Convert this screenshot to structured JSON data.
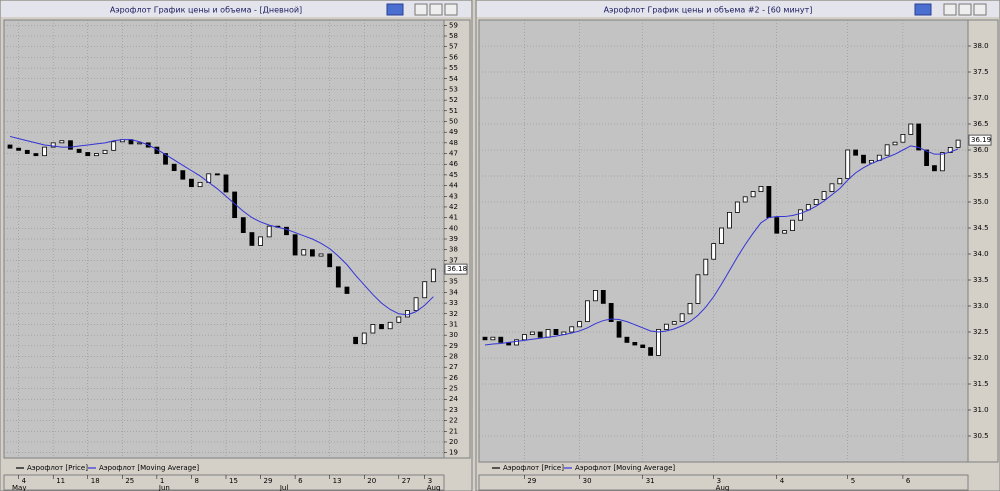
{
  "chart_data": [
    {
      "type": "candlestick",
      "title": "Аэрофлот График цены и объема - [Дневной]",
      "ylim": [
        18.5,
        59.5
      ],
      "yticks": [
        19,
        20,
        21,
        22,
        23,
        24,
        25,
        26,
        27,
        28,
        29,
        30,
        31,
        32,
        33,
        34,
        35,
        36,
        37,
        38,
        39,
        40,
        41,
        42,
        43,
        44,
        45,
        46,
        47,
        48,
        49,
        50,
        51,
        52,
        53,
        54,
        55,
        56,
        57,
        58,
        59
      ],
      "xticks": [
        {
          "value": 1,
          "label": "4"
        },
        {
          "value": 5,
          "label": "11"
        },
        {
          "value": 9,
          "label": "18"
        },
        {
          "value": 13,
          "label": "25"
        },
        {
          "value": 17,
          "label": "1"
        },
        {
          "value": 21,
          "label": "8"
        },
        {
          "value": 25,
          "label": "15"
        },
        {
          "value": 29,
          "label": "29"
        },
        {
          "value": 33,
          "label": "6"
        },
        {
          "value": 37,
          "label": "13"
        },
        {
          "value": 41,
          "label": "20"
        },
        {
          "value": 45,
          "label": "27"
        },
        {
          "value": 48,
          "label": "3"
        }
      ],
      "months": [
        {
          "value": 0,
          "label": "May"
        },
        {
          "value": 17,
          "label": "Jun"
        },
        {
          "value": 31,
          "label": "Jul"
        },
        {
          "value": 48,
          "label": "Aug"
        }
      ],
      "grid": true,
      "series": [
        {
          "name": "Аэрофлот [Price]",
          "color": "#000000",
          "open": [
            47.8,
            47.5,
            47.3,
            47.0,
            46.8,
            47.6,
            48.0,
            48.2,
            47.4,
            47.1,
            46.8,
            47.0,
            47.3,
            48.1,
            48.3,
            47.9,
            48.0,
            47.6,
            47.0,
            46.0,
            45.4,
            44.6,
            43.9,
            44.3,
            45.1,
            45.0,
            43.4,
            41.0,
            39.6,
            38.4,
            39.2,
            40.2,
            40.1,
            39.4,
            37.5,
            38.0,
            37.4,
            37.6,
            36.4,
            34.5,
            29.8,
            29.2,
            30.2,
            31.0,
            30.6,
            31.2,
            31.7,
            32.3,
            33.5,
            35.0
          ],
          "close": [
            47.5,
            47.3,
            47.0,
            46.8,
            47.6,
            48.0,
            48.2,
            47.4,
            47.1,
            46.8,
            47.0,
            47.3,
            48.1,
            48.3,
            47.9,
            48.0,
            47.6,
            47.0,
            46.0,
            45.4,
            44.6,
            43.9,
            44.3,
            45.1,
            45.0,
            43.4,
            41.0,
            39.6,
            38.4,
            39.2,
            40.2,
            40.1,
            39.4,
            37.5,
            38.0,
            37.4,
            37.6,
            36.4,
            34.5,
            33.9,
            29.2,
            30.2,
            31.0,
            30.6,
            31.2,
            31.7,
            32.3,
            33.5,
            35.0,
            36.18
          ]
        },
        {
          "name": "Аэрофлот [Moving Average]",
          "color": "#3434d8",
          "values": [
            48.6,
            48.4,
            48.2,
            48.0,
            47.8,
            47.7,
            47.6,
            47.6,
            47.7,
            47.8,
            47.9,
            48.0,
            48.2,
            48.3,
            48.3,
            48.1,
            47.8,
            47.4,
            46.9,
            46.4,
            45.9,
            45.4,
            44.9,
            44.3,
            43.7,
            43.0,
            42.3,
            41.6,
            41.0,
            40.6,
            40.3,
            40.1,
            39.9,
            39.6,
            39.3,
            39.0,
            38.6,
            38.1,
            37.4,
            36.6,
            35.6,
            34.7,
            33.8,
            33.0,
            32.4,
            32.0,
            31.9,
            32.2,
            32.8,
            33.6
          ]
        }
      ]
    },
    {
      "type": "candlestick",
      "title": "Аэрофлот График цены и объема #2 - [60 минут]",
      "ylim": [
        30.0,
        38.5
      ],
      "yticks": [
        {
          "value": 30.5,
          "label": "30.5"
        },
        {
          "value": 31,
          "label": "31.0"
        },
        {
          "value": 31.5,
          "label": "31.5"
        },
        {
          "value": 32,
          "label": "32.0"
        },
        {
          "value": 32.5,
          "label": "32.5"
        },
        {
          "value": 33,
          "label": "33.0"
        },
        {
          "value": 33.5,
          "label": "33.5"
        },
        {
          "value": 34,
          "label": "34.0"
        },
        {
          "value": 34.5,
          "label": "34.5"
        },
        {
          "value": 35,
          "label": "35.0"
        },
        {
          "value": 35.5,
          "label": "35.5"
        },
        {
          "value": 36,
          "label": "36.0"
        },
        {
          "value": 36.5,
          "label": "36.5"
        },
        {
          "value": 37,
          "label": "37.0"
        },
        {
          "value": 37.5,
          "label": "37.5"
        },
        {
          "value": 38,
          "label": "38.0"
        }
      ],
      "xticks": [
        {
          "value": 5,
          "label": "29"
        },
        {
          "value": 12,
          "label": "30"
        },
        {
          "value": 20,
          "label": "31"
        },
        {
          "value": 29,
          "label": "3"
        },
        {
          "value": 37,
          "label": "4"
        },
        {
          "value": 46,
          "label": "5"
        },
        {
          "value": 53,
          "label": "6"
        }
      ],
      "months": [
        {
          "value": 29,
          "label": "Aug"
        }
      ],
      "grid": true,
      "series": [
        {
          "name": "Аэрофлот [Price]",
          "color": "#000000",
          "open": [
            32.4,
            32.35,
            32.4,
            32.3,
            32.25,
            32.35,
            32.45,
            32.5,
            32.4,
            32.55,
            32.45,
            32.5,
            32.6,
            32.7,
            33.1,
            33.3,
            33.05,
            32.7,
            32.4,
            32.3,
            32.25,
            32.2,
            32.05,
            32.55,
            32.65,
            32.7,
            32.85,
            33.05,
            33.6,
            33.9,
            34.2,
            34.5,
            34.8,
            35.0,
            35.1,
            35.2,
            35.3,
            34.7,
            34.4,
            34.45,
            34.65,
            34.85,
            34.95,
            35.05,
            35.2,
            35.35,
            35.45,
            36.0,
            35.9,
            35.75,
            35.8,
            35.9,
            36.1,
            36.15,
            36.3,
            36.5,
            36.0,
            35.7,
            35.6,
            35.95,
            36.05
          ],
          "close": [
            32.35,
            32.4,
            32.3,
            32.25,
            32.35,
            32.45,
            32.5,
            32.4,
            32.55,
            32.45,
            32.5,
            32.6,
            32.7,
            33.1,
            33.3,
            33.05,
            32.7,
            32.4,
            32.3,
            32.25,
            32.2,
            32.05,
            32.55,
            32.65,
            32.7,
            32.85,
            33.05,
            33.6,
            33.9,
            34.2,
            34.5,
            34.8,
            35.0,
            35.1,
            35.2,
            35.3,
            34.7,
            34.4,
            34.45,
            34.65,
            34.85,
            34.95,
            35.05,
            35.2,
            35.35,
            35.45,
            36.0,
            35.9,
            35.75,
            35.8,
            35.9,
            36.1,
            36.15,
            36.3,
            36.5,
            36.0,
            35.7,
            35.6,
            35.95,
            36.05,
            36.19
          ]
        },
        {
          "name": "Аэрофлот [Moving Average]",
          "color": "#3434d8",
          "values": [
            32.25,
            32.27,
            32.28,
            32.3,
            32.32,
            32.34,
            32.36,
            32.38,
            32.4,
            32.42,
            32.45,
            32.48,
            32.52,
            32.58,
            32.66,
            32.72,
            32.75,
            32.74,
            32.7,
            32.64,
            32.58,
            32.52,
            32.5,
            32.52,
            32.56,
            32.62,
            32.7,
            32.82,
            32.98,
            33.18,
            33.42,
            33.68,
            33.94,
            34.18,
            34.4,
            34.6,
            34.7,
            34.72,
            34.72,
            34.74,
            34.78,
            34.84,
            34.92,
            35.02,
            35.14,
            35.26,
            35.42,
            35.56,
            35.66,
            35.74,
            35.8,
            35.86,
            35.92,
            36.0,
            36.08,
            36.05,
            35.98,
            35.92,
            35.92,
            35.96,
            36.02
          ]
        }
      ]
    }
  ]
}
